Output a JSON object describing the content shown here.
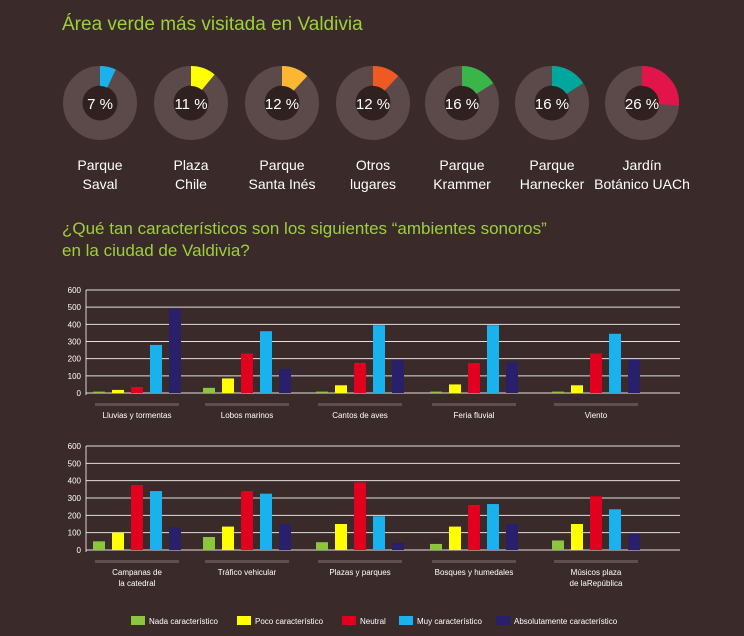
{
  "title1": "Área verde más visitada en Valdivia",
  "title2_line1": "¿Qué tan característicos son los siguientes “ambientes sonoros”",
  "title2_line2": "en la ciudad de Valdivia?",
  "colors": {
    "background": "#3a2a29",
    "ring": "#5b4a49",
    "title": "#9bd13a",
    "grid": "#ffffff",
    "series": [
      "#8cc63f",
      "#ffff00",
      "#e1001d",
      "#1ab2ec",
      "#28206b"
    ]
  },
  "donuts": [
    {
      "value": 7,
      "label": "7 %",
      "name_line1": "Parque",
      "name_line2": "Saval",
      "color": "#1ab2ec"
    },
    {
      "value": 11,
      "label": "11 %",
      "name_line1": "Plaza",
      "name_line2": "Chile",
      "color": "#ffff00"
    },
    {
      "value": 12,
      "label": "12 %",
      "name_line1": "Parque",
      "name_line2": "Santa Inés",
      "color": "#fbb731"
    },
    {
      "value": 12,
      "label": "12 %",
      "name_line1": "Otros",
      "name_line2": "lugares",
      "color": "#f05a22"
    },
    {
      "value": 16,
      "label": "16 %",
      "name_line1": "Parque",
      "name_line2": "Krammer",
      "color": "#39b54a"
    },
    {
      "value": 16,
      "label": "16 %",
      "name_line1": "Parque",
      "name_line2": "Harnecker",
      "color": "#00a79d"
    },
    {
      "value": 26,
      "label": "26 %",
      "name_line1": "Jardín",
      "name_line2": "Botánico UACh",
      "color": "#e1154a"
    }
  ],
  "chart_data": [
    {
      "type": "bar",
      "ylim": [
        0,
        600
      ],
      "yticks": [
        "0",
        "100",
        "200",
        "300",
        "400",
        "500",
        "600"
      ],
      "categories": [
        [
          "Lluvias y  tormentas"
        ],
        [
          "Lobos  marinos"
        ],
        [
          "Cantos de aves"
        ],
        [
          "Feria fluvial"
        ],
        [
          "Viento"
        ]
      ],
      "series": [
        {
          "name": "Nada característico",
          "values": [
            8,
            30,
            8,
            8,
            8
          ]
        },
        {
          "name": "Poco característico",
          "values": [
            18,
            85,
            45,
            50,
            45
          ]
        },
        {
          "name": "Neutral",
          "values": [
            35,
            230,
            175,
            175,
            230
          ]
        },
        {
          "name": "Muy característico",
          "values": [
            280,
            360,
            395,
            395,
            345
          ]
        },
        {
          "name": "Absolutamente característico",
          "values": [
            490,
            140,
            190,
            180,
            195
          ]
        }
      ]
    },
    {
      "type": "bar",
      "ylim": [
        0,
        600
      ],
      "yticks": [
        "0",
        "100",
        "200",
        "300",
        "400",
        "500",
        "600"
      ],
      "categories": [
        [
          "Campanas de",
          "la catedral"
        ],
        [
          "Tráfico vehicular"
        ],
        [
          "Plazas y parques"
        ],
        [
          "Bosques y humedales"
        ],
        [
          "Músicos plaza",
          "de laRepública"
        ]
      ],
      "series": [
        {
          "name": "Nada característico",
          "values": [
            50,
            75,
            45,
            35,
            55
          ]
        },
        {
          "name": "Poco característico",
          "values": [
            100,
            135,
            150,
            135,
            150
          ]
        },
        {
          "name": "Neutral",
          "values": [
            375,
            340,
            390,
            260,
            310
          ]
        },
        {
          "name": "Muy característico",
          "values": [
            340,
            325,
            195,
            265,
            235
          ]
        },
        {
          "name": "Absolutamente característico",
          "values": [
            130,
            150,
            40,
            150,
            95
          ]
        }
      ]
    }
  ],
  "legend": [
    "Nada característico",
    "Poco característico",
    "Neutral",
    "Muy característico",
    "Absolutamente característico"
  ]
}
